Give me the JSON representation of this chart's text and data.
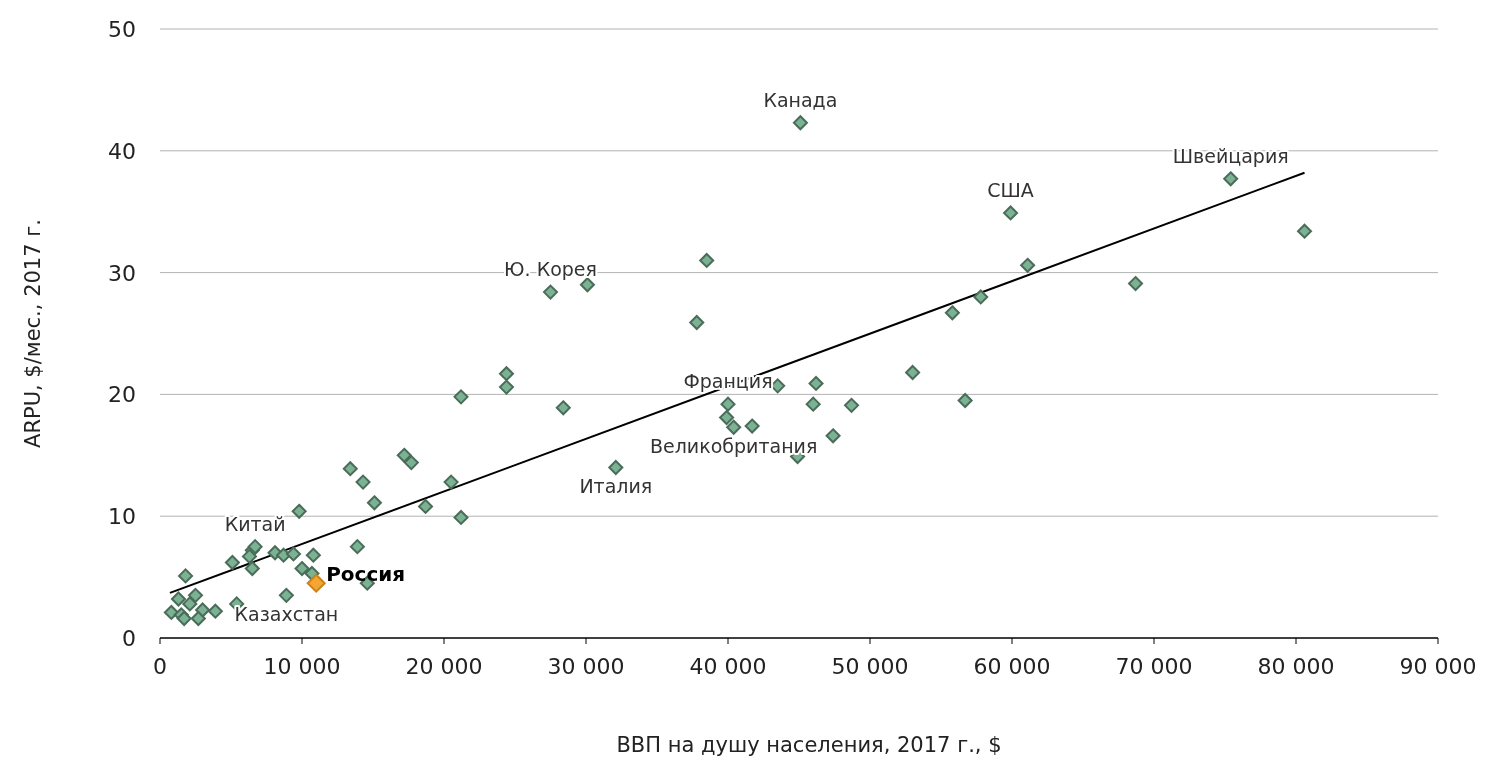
{
  "chart_data": {
    "type": "scatter",
    "xlabel": "ВВП на душу населения, 2017 г., $",
    "ylabel": "ARPU, $/мес., 2017 г.",
    "xlim": [
      0,
      90000
    ],
    "ylim": [
      0,
      50
    ],
    "xticks": [
      0,
      {
        "value": 10000,
        "label": "10 000"
      },
      {
        "value": 20000,
        "label": "20 000"
      },
      {
        "value": 30000,
        "label": "30 000"
      },
      {
        "value": 40000,
        "label": "40 000"
      },
      {
        "value": 50000,
        "label": "50 000"
      },
      {
        "value": 60000,
        "label": "60 000"
      },
      {
        "value": 70000,
        "label": "70 000"
      },
      {
        "value": 80000,
        "label": "80 000"
      },
      {
        "value": 90000,
        "label": "90 000"
      }
    ],
    "yticks": [
      0,
      10,
      20,
      30,
      40,
      50
    ],
    "grid": "y",
    "series": [
      {
        "marker": "diamond",
        "color": "#7ab293",
        "x": [
          17200,
          17700,
          13400,
          14300,
          20500,
          9800,
          15100,
          18700,
          21200,
          13900,
          6500,
          6700,
          6300,
          8100,
          8700,
          9400,
          10800,
          5100,
          6500,
          10000,
          10700,
          14600,
          1800,
          8900,
          2500,
          5400,
          3900,
          3000,
          1300,
          2100,
          800,
          1500,
          1700,
          2700,
          27500,
          30100,
          24400,
          24400,
          21200,
          28400,
          32100,
          38500,
          37800,
          61100,
          57800,
          55800,
          53000,
          43500,
          46200,
          40000,
          39900,
          40400,
          41700,
          46000,
          48700,
          56700,
          47400,
          44900,
          45100,
          59900,
          75400,
          80600,
          68700
        ],
        "values": [
          15.0,
          14.4,
          13.9,
          12.8,
          12.8,
          10.4,
          11.1,
          10.8,
          9.9,
          7.5,
          7.2,
          7.5,
          6.7,
          7.0,
          6.8,
          6.9,
          6.8,
          6.2,
          5.7,
          5.7,
          5.3,
          4.5,
          5.1,
          3.5,
          3.5,
          2.8,
          2.2,
          2.3,
          3.2,
          2.8,
          2.1,
          1.9,
          1.6,
          1.6,
          28.4,
          29.0,
          21.7,
          20.6,
          19.8,
          18.9,
          14.0,
          31.0,
          25.9,
          30.6,
          28.0,
          26.7,
          21.8,
          20.7,
          20.9,
          19.2,
          18.1,
          17.3,
          17.4,
          19.2,
          19.1,
          19.5,
          16.6,
          14.9,
          42.3,
          34.9,
          37.7,
          33.4,
          29.1
        ]
      },
      {
        "marker": "diamond",
        "name": "Россия",
        "color": "#f5a533",
        "x": [
          11000
        ],
        "values": [
          4.5
        ]
      },
      {
        "type": "line",
        "color": "#000000",
        "x": [
          700,
          80600
        ],
        "values": [
          3.7,
          38.2
        ]
      }
    ],
    "annotations": [
      {
        "text": "Канада",
        "x": 45100,
        "y": 42.3
      },
      {
        "text": "Швейцария",
        "x": 75400,
        "y": 37.7
      },
      {
        "text": "США",
        "x": 59900,
        "y": 34.9
      },
      {
        "text": "Ю. Корея",
        "x": 27500,
        "y": 28.4
      },
      {
        "text": "Франция",
        "x": 40000,
        "y": 19.2
      },
      {
        "text": "Великобритания",
        "x": 40400,
        "y": 17.3
      },
      {
        "text": "Италия",
        "x": 32100,
        "y": 14.0
      },
      {
        "text": "Китай",
        "x": 6700,
        "y": 7.5
      },
      {
        "text": "Казахстан",
        "x": 8900,
        "y": 3.5
      }
    ]
  }
}
